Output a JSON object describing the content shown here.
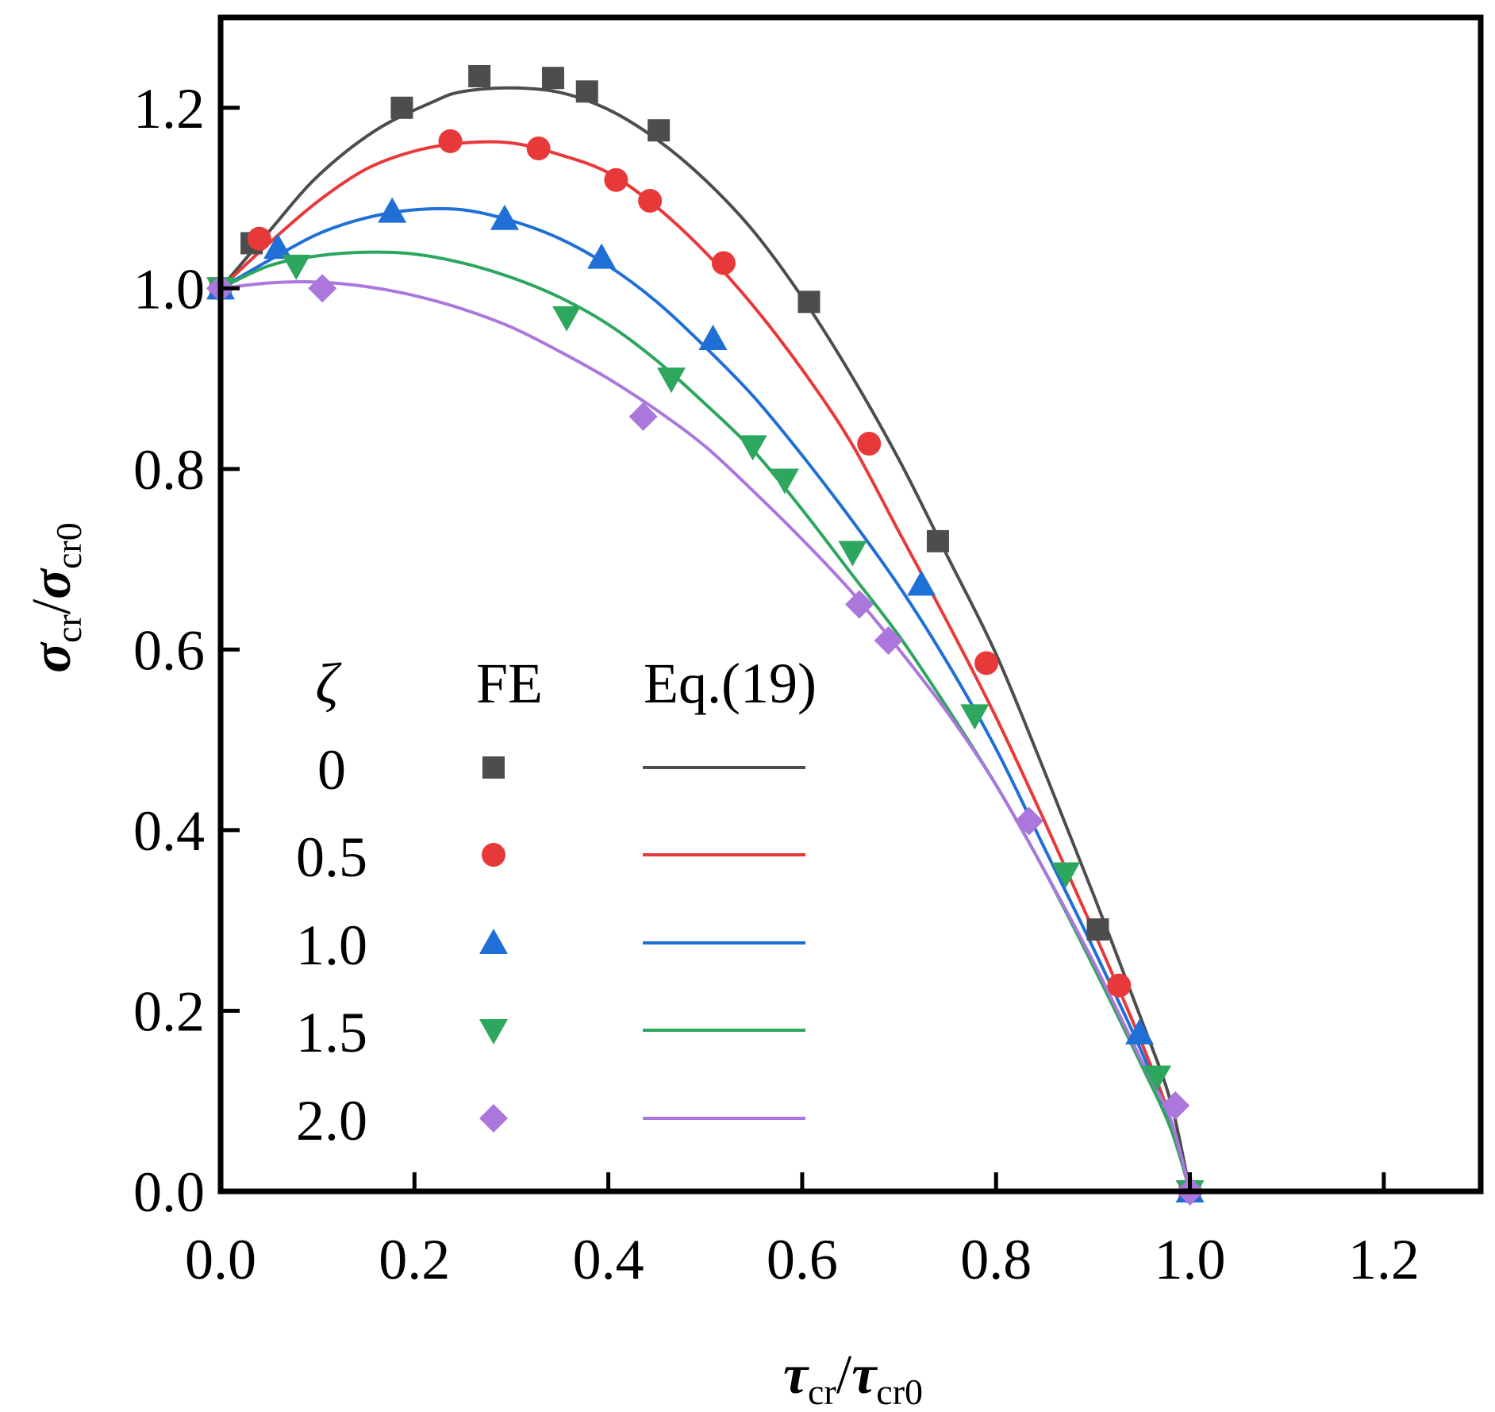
{
  "chart_data": {
    "type": "scatter",
    "title": "",
    "xlabel": {
      "main": "τ",
      "sub": "cr",
      "main2": "τ",
      "sub2": "cr0"
    },
    "ylabel": {
      "main": "σ",
      "sub": "cr",
      "main2": "σ",
      "sub2": "cr0"
    },
    "xlim": [
      0,
      1.3
    ],
    "ylim": [
      0,
      1.3
    ],
    "xticks": [
      0,
      0.2,
      0.4,
      0.6,
      0.8,
      1.0,
      1.2
    ],
    "xtick_labels": [
      "0.0",
      "0.2",
      "0.4",
      "0.6",
      "0.8",
      "1.0",
      "1.2"
    ],
    "yticks": [
      0,
      0.2,
      0.4,
      0.6,
      0.8,
      1.0,
      1.2
    ],
    "ytick_labels": [
      "0.0",
      "0.2",
      "0.4",
      "0.6",
      "0.8",
      "1.0",
      "1.2"
    ],
    "legend": {
      "position": "lower-left",
      "header_param": "ζ",
      "header_fe": "FE",
      "header_eq": "Eq.(19)"
    },
    "series": [
      {
        "name": "0",
        "color": "#4d4d4d",
        "marker": "square",
        "fe": [
          [
            0.0,
            1.0
          ],
          [
            0.032,
            1.05
          ],
          [
            0.187,
            1.2
          ],
          [
            0.267,
            1.235
          ],
          [
            0.343,
            1.233
          ],
          [
            0.378,
            1.218
          ],
          [
            0.452,
            1.175
          ],
          [
            0.607,
            0.985
          ],
          [
            0.74,
            0.72
          ],
          [
            0.905,
            0.29
          ],
          [
            1.0,
            0.0
          ]
        ],
        "curve": [
          [
            0.0,
            1.0
          ],
          [
            0.05,
            1.063
          ],
          [
            0.1,
            1.124
          ],
          [
            0.16,
            1.175
          ],
          [
            0.22,
            1.207
          ],
          [
            0.25,
            1.218
          ],
          [
            0.3,
            1.222
          ],
          [
            0.35,
            1.217
          ],
          [
            0.4,
            1.198
          ],
          [
            0.45,
            1.165
          ],
          [
            0.5,
            1.12
          ],
          [
            0.55,
            1.063
          ],
          [
            0.6,
            0.99
          ],
          [
            0.65,
            0.905
          ],
          [
            0.7,
            0.81
          ],
          [
            0.75,
            0.703
          ],
          [
            0.8,
            0.595
          ],
          [
            0.85,
            0.465
          ],
          [
            0.9,
            0.33
          ],
          [
            0.95,
            0.19
          ],
          [
            0.98,
            0.1
          ],
          [
            1.0,
            0.0
          ]
        ]
      },
      {
        "name": "0.5",
        "color": "#e8393a",
        "marker": "circle",
        "fe": [
          [
            0.0,
            1.0
          ],
          [
            0.04,
            1.055
          ],
          [
            0.237,
            1.163
          ],
          [
            0.328,
            1.155
          ],
          [
            0.408,
            1.12
          ],
          [
            0.443,
            1.097
          ],
          [
            0.519,
            1.028
          ],
          [
            0.669,
            0.828
          ],
          [
            0.79,
            0.585
          ],
          [
            0.927,
            0.228
          ],
          [
            1.0,
            0.0
          ]
        ],
        "curve": [
          [
            0.0,
            1.0
          ],
          [
            0.05,
            1.05
          ],
          [
            0.1,
            1.096
          ],
          [
            0.15,
            1.132
          ],
          [
            0.2,
            1.152
          ],
          [
            0.25,
            1.161
          ],
          [
            0.3,
            1.161
          ],
          [
            0.35,
            1.148
          ],
          [
            0.4,
            1.128
          ],
          [
            0.45,
            1.09
          ],
          [
            0.5,
            1.04
          ],
          [
            0.55,
            0.98
          ],
          [
            0.6,
            0.91
          ],
          [
            0.65,
            0.83
          ],
          [
            0.7,
            0.73
          ],
          [
            0.75,
            0.63
          ],
          [
            0.8,
            0.525
          ],
          [
            0.85,
            0.41
          ],
          [
            0.9,
            0.29
          ],
          [
            0.95,
            0.165
          ],
          [
            0.98,
            0.08
          ],
          [
            1.0,
            0.0
          ]
        ]
      },
      {
        "name": "1.0",
        "color": "#1f6fd6",
        "marker": "triangle-up",
        "fe": [
          [
            0.0,
            1.0
          ],
          [
            0.059,
            1.045
          ],
          [
            0.177,
            1.085
          ],
          [
            0.293,
            1.077
          ],
          [
            0.393,
            1.034
          ],
          [
            0.508,
            0.944
          ],
          [
            0.723,
            0.672
          ],
          [
            0.948,
            0.175
          ],
          [
            1.0,
            0.0
          ]
        ],
        "curve": [
          [
            0.0,
            1.0
          ],
          [
            0.05,
            1.031
          ],
          [
            0.1,
            1.06
          ],
          [
            0.15,
            1.078
          ],
          [
            0.2,
            1.087
          ],
          [
            0.25,
            1.087
          ],
          [
            0.3,
            1.075
          ],
          [
            0.35,
            1.055
          ],
          [
            0.4,
            1.025
          ],
          [
            0.45,
            0.985
          ],
          [
            0.5,
            0.935
          ],
          [
            0.55,
            0.88
          ],
          [
            0.6,
            0.815
          ],
          [
            0.65,
            0.745
          ],
          [
            0.7,
            0.67
          ],
          [
            0.75,
            0.585
          ],
          [
            0.8,
            0.49
          ],
          [
            0.85,
            0.38
          ],
          [
            0.9,
            0.27
          ],
          [
            0.95,
            0.155
          ],
          [
            0.98,
            0.075
          ],
          [
            1.0,
            0.0
          ]
        ]
      },
      {
        "name": "1.5",
        "color": "#2da65e",
        "marker": "triangle-down",
        "fe": [
          [
            0.0,
            1.0
          ],
          [
            0.078,
            1.025
          ],
          [
            0.357,
            0.968
          ],
          [
            0.465,
            0.9
          ],
          [
            0.549,
            0.825
          ],
          [
            0.582,
            0.788
          ],
          [
            0.652,
            0.708
          ],
          [
            0.778,
            0.527
          ],
          [
            0.872,
            0.352
          ],
          [
            0.966,
            0.127
          ],
          [
            1.0,
            0.0
          ]
        ],
        "curve": [
          [
            0.0,
            1.0
          ],
          [
            0.05,
            1.025
          ],
          [
            0.1,
            1.036
          ],
          [
            0.15,
            1.04
          ],
          [
            0.2,
            1.038
          ],
          [
            0.25,
            1.028
          ],
          [
            0.3,
            1.012
          ],
          [
            0.35,
            0.99
          ],
          [
            0.4,
            0.96
          ],
          [
            0.45,
            0.92
          ],
          [
            0.5,
            0.872
          ],
          [
            0.55,
            0.82
          ],
          [
            0.6,
            0.755
          ],
          [
            0.65,
            0.685
          ],
          [
            0.7,
            0.615
          ],
          [
            0.75,
            0.535
          ],
          [
            0.8,
            0.45
          ],
          [
            0.85,
            0.355
          ],
          [
            0.9,
            0.25
          ],
          [
            0.95,
            0.14
          ],
          [
            0.98,
            0.07
          ],
          [
            1.0,
            0.0
          ]
        ]
      },
      {
        "name": "2.0",
        "color": "#ab77dc",
        "marker": "diamond",
        "fe": [
          [
            0.0,
            1.0
          ],
          [
            0.105,
            1.0
          ],
          [
            0.436,
            0.858
          ],
          [
            0.659,
            0.65
          ],
          [
            0.689,
            0.61
          ],
          [
            0.834,
            0.41
          ],
          [
            0.985,
            0.095
          ],
          [
            1.0,
            0.0
          ]
        ],
        "curve": [
          [
            0.0,
            1.0
          ],
          [
            0.05,
            1.006
          ],
          [
            0.1,
            1.007
          ],
          [
            0.15,
            1.002
          ],
          [
            0.2,
            0.992
          ],
          [
            0.25,
            0.977
          ],
          [
            0.3,
            0.957
          ],
          [
            0.35,
            0.93
          ],
          [
            0.4,
            0.9
          ],
          [
            0.45,
            0.865
          ],
          [
            0.5,
            0.825
          ],
          [
            0.55,
            0.775
          ],
          [
            0.6,
            0.722
          ],
          [
            0.65,
            0.665
          ],
          [
            0.7,
            0.6
          ],
          [
            0.75,
            0.53
          ],
          [
            0.8,
            0.45
          ],
          [
            0.85,
            0.355
          ],
          [
            0.9,
            0.255
          ],
          [
            0.95,
            0.145
          ],
          [
            0.98,
            0.08
          ],
          [
            1.0,
            0.0
          ]
        ]
      }
    ]
  }
}
